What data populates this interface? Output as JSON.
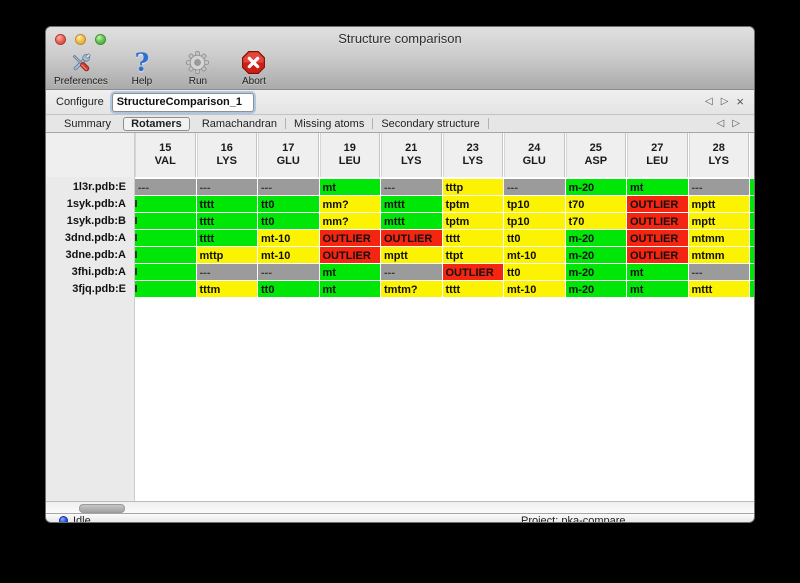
{
  "titlebar": {
    "title": "Structure comparison"
  },
  "toolbar": {
    "items": [
      {
        "label": "Preferences"
      },
      {
        "label": "Help"
      },
      {
        "label": "Run"
      },
      {
        "label": "Abort"
      }
    ]
  },
  "configure": {
    "label": "Configure",
    "value": "StructureComparison_1",
    "nav_back": "◁",
    "nav_forward": "▷",
    "close": "×"
  },
  "tabs": {
    "items": [
      "Summary",
      "Rotamers",
      "Ramachandran",
      "Missing atoms",
      "Secondary structure"
    ],
    "selected": "Rotamers",
    "nav_back": "◁",
    "nav_forward": "▷"
  },
  "table": {
    "columns": [
      {
        "num": "15",
        "res": "VAL"
      },
      {
        "num": "16",
        "res": "LYS"
      },
      {
        "num": "17",
        "res": "GLU"
      },
      {
        "num": "19",
        "res": "LEU"
      },
      {
        "num": "21",
        "res": "LYS"
      },
      {
        "num": "23",
        "res": "LYS"
      },
      {
        "num": "24",
        "res": "GLU"
      },
      {
        "num": "25",
        "res": "ASP"
      },
      {
        "num": "27",
        "res": "LEU"
      },
      {
        "num": "28",
        "res": "LYS"
      }
    ],
    "rows": [
      {
        "label": "1l3r.pdb:E",
        "edge": "green",
        "cells": [
          [
            "---",
            "gray"
          ],
          [
            "---",
            "gray"
          ],
          [
            "---",
            "gray"
          ],
          [
            "mt",
            "green"
          ],
          [
            "---",
            "gray"
          ],
          [
            "tttp",
            "yellow"
          ],
          [
            "---",
            "gray"
          ],
          [
            "m-20",
            "green"
          ],
          [
            "mt",
            "green"
          ],
          [
            "---",
            "gray"
          ]
        ]
      },
      {
        "label": "1syk.pdb:A",
        "edge": "green",
        "cells": [
          [
            "",
            "green"
          ],
          [
            "tttt",
            "green"
          ],
          [
            "tt0",
            "green"
          ],
          [
            "mm?",
            "yellow"
          ],
          [
            "mttt",
            "green"
          ],
          [
            "tptm",
            "yellow"
          ],
          [
            "tp10",
            "yellow"
          ],
          [
            "t70",
            "yellow"
          ],
          [
            "OUTLIER",
            "red"
          ],
          [
            "mptt",
            "yellow"
          ]
        ]
      },
      {
        "label": "1syk.pdb:B",
        "edge": "green",
        "cells": [
          [
            "",
            "green"
          ],
          [
            "tttt",
            "green"
          ],
          [
            "tt0",
            "green"
          ],
          [
            "mm?",
            "yellow"
          ],
          [
            "mttt",
            "green"
          ],
          [
            "tptm",
            "yellow"
          ],
          [
            "tp10",
            "yellow"
          ],
          [
            "t70",
            "yellow"
          ],
          [
            "OUTLIER",
            "red"
          ],
          [
            "mptt",
            "yellow"
          ]
        ]
      },
      {
        "label": "3dnd.pdb:A",
        "edge": "green",
        "cells": [
          [
            "",
            "green"
          ],
          [
            "tttt",
            "green"
          ],
          [
            "mt-10",
            "yellow"
          ],
          [
            "OUTLIER",
            "red"
          ],
          [
            "OUTLIER",
            "red"
          ],
          [
            "tttt",
            "yellow"
          ],
          [
            "tt0",
            "yellow"
          ],
          [
            "m-20",
            "green"
          ],
          [
            "OUTLIER",
            "red"
          ],
          [
            "mtmm",
            "yellow"
          ]
        ]
      },
      {
        "label": "3dne.pdb:A",
        "edge": "green",
        "cells": [
          [
            "",
            "green"
          ],
          [
            "mttp",
            "yellow"
          ],
          [
            "mt-10",
            "yellow"
          ],
          [
            "OUTLIER",
            "red"
          ],
          [
            "mptt",
            "yellow"
          ],
          [
            "ttpt",
            "yellow"
          ],
          [
            "mt-10",
            "yellow"
          ],
          [
            "m-20",
            "green"
          ],
          [
            "OUTLIER",
            "red"
          ],
          [
            "mtmm",
            "yellow"
          ]
        ]
      },
      {
        "label": "3fhi.pdb:A",
        "edge": "green",
        "cells": [
          [
            "",
            "green"
          ],
          [
            "---",
            "gray"
          ],
          [
            "---",
            "gray"
          ],
          [
            "mt",
            "green"
          ],
          [
            "---",
            "gray"
          ],
          [
            "OUTLIER",
            "red"
          ],
          [
            "tt0",
            "yellow"
          ],
          [
            "m-20",
            "green"
          ],
          [
            "mt",
            "green"
          ],
          [
            "---",
            "gray"
          ]
        ]
      },
      {
        "label": "3fjq.pdb:E",
        "edge": "green",
        "cells": [
          [
            "",
            "green"
          ],
          [
            "tttm",
            "yellow"
          ],
          [
            "tt0",
            "green"
          ],
          [
            "mt",
            "green"
          ],
          [
            "tmtm?",
            "yellow"
          ],
          [
            "tttt",
            "yellow"
          ],
          [
            "mt-10",
            "yellow"
          ],
          [
            "m-20",
            "green"
          ],
          [
            "mt",
            "green"
          ],
          [
            "mttt",
            "yellow"
          ]
        ]
      }
    ]
  },
  "statusbar": {
    "status": "Idle",
    "project": "Project: pka-compare"
  },
  "colors": {
    "green": "#00e606",
    "yellow": "#fcf303",
    "red": "#f42511",
    "gray": "#9b9b9b"
  }
}
